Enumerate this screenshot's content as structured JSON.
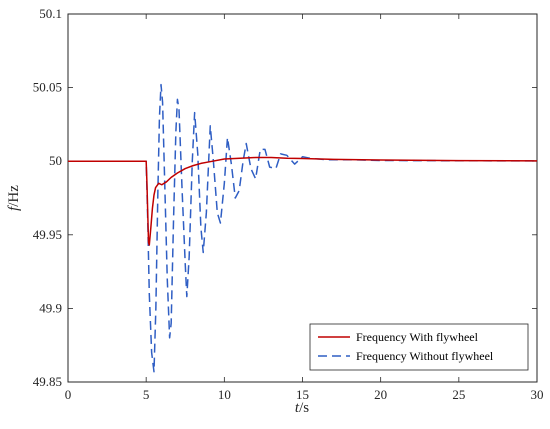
{
  "chart_data": {
    "type": "line",
    "xlabel_italic": "t",
    "xlabel_unit": "/s",
    "ylabel_italic": "f",
    "ylabel_unit": "/Hz",
    "xlim": [
      0,
      30
    ],
    "ylim": [
      49.85,
      50.1
    ],
    "xticks": [
      "0",
      "5",
      "10",
      "15",
      "20",
      "25",
      "30"
    ],
    "yticks": [
      "49.85",
      "49.9",
      "49.95",
      "50",
      "50.05",
      "50.1"
    ],
    "grid": false,
    "legend_position": "bottom-right",
    "series": [
      {
        "name": "Frequency With flywheel",
        "color": "#c00000",
        "dash": "solid",
        "points": [
          [
            0,
            50.0
          ],
          [
            5.0,
            50.0
          ],
          [
            5.05,
            49.985
          ],
          [
            5.1,
            49.965
          ],
          [
            5.15,
            49.945
          ],
          [
            5.2,
            49.943
          ],
          [
            5.3,
            49.955
          ],
          [
            5.4,
            49.968
          ],
          [
            5.5,
            49.977
          ],
          [
            5.6,
            49.982
          ],
          [
            5.8,
            49.985
          ],
          [
            6.0,
            49.984
          ],
          [
            6.3,
            49.986
          ],
          [
            6.6,
            49.989
          ],
          [
            7.0,
            49.992
          ],
          [
            7.5,
            49.995
          ],
          [
            8.0,
            49.997
          ],
          [
            8.5,
            49.9985
          ],
          [
            9.0,
            49.9995
          ],
          [
            10.0,
            50.0015
          ],
          [
            11.0,
            50.002
          ],
          [
            12.0,
            50.0025
          ],
          [
            13.0,
            50.0025
          ],
          [
            14.0,
            50.002
          ],
          [
            15.0,
            50.0018
          ],
          [
            17.0,
            50.0012
          ],
          [
            20.0,
            50.0008
          ],
          [
            25.0,
            50.0004
          ],
          [
            30.0,
            50.0002
          ]
        ]
      },
      {
        "name": "Frequency Without flywheel",
        "color": "#2f5ec4",
        "dash": "dashed",
        "points": [
          [
            0,
            50.0
          ],
          [
            5.0,
            50.0
          ],
          [
            5.1,
            49.96
          ],
          [
            5.2,
            49.91
          ],
          [
            5.35,
            49.87
          ],
          [
            5.5,
            49.857
          ],
          [
            5.62,
            49.9
          ],
          [
            5.75,
            49.98
          ],
          [
            5.85,
            50.03
          ],
          [
            5.95,
            50.052
          ],
          [
            6.05,
            50.04
          ],
          [
            6.2,
            49.98
          ],
          [
            6.35,
            49.92
          ],
          [
            6.5,
            49.88
          ],
          [
            6.6,
            49.89
          ],
          [
            6.75,
            49.96
          ],
          [
            6.9,
            50.02
          ],
          [
            7.0,
            50.042
          ],
          [
            7.1,
            50.035
          ],
          [
            7.3,
            49.98
          ],
          [
            7.5,
            49.93
          ],
          [
            7.6,
            49.908
          ],
          [
            7.75,
            49.935
          ],
          [
            7.95,
            50.0
          ],
          [
            8.1,
            50.033
          ],
          [
            8.3,
            50.005
          ],
          [
            8.5,
            49.955
          ],
          [
            8.65,
            49.938
          ],
          [
            8.85,
            49.965
          ],
          [
            9.1,
            50.024
          ],
          [
            9.3,
            50.0
          ],
          [
            9.55,
            49.965
          ],
          [
            9.75,
            49.958
          ],
          [
            10.0,
            49.985
          ],
          [
            10.2,
            50.016
          ],
          [
            10.45,
            49.998
          ],
          [
            10.7,
            49.975
          ],
          [
            10.95,
            49.98
          ],
          [
            11.2,
            50.0
          ],
          [
            11.4,
            50.012
          ],
          [
            11.7,
            49.995
          ],
          [
            12.0,
            49.988
          ],
          [
            12.3,
            50.008
          ],
          [
            12.6,
            50.008
          ],
          [
            12.9,
            49.996
          ],
          [
            13.3,
            49.995
          ],
          [
            13.6,
            50.005
          ],
          [
            14.0,
            50.004
          ],
          [
            14.5,
            49.998
          ],
          [
            15.0,
            50.003
          ],
          [
            15.5,
            50.002
          ],
          [
            16.5,
            50.001
          ],
          [
            18.0,
            50.001
          ],
          [
            20.0,
            50.0005
          ],
          [
            25.0,
            50.0003
          ],
          [
            30.0,
            50.0002
          ]
        ]
      }
    ]
  }
}
